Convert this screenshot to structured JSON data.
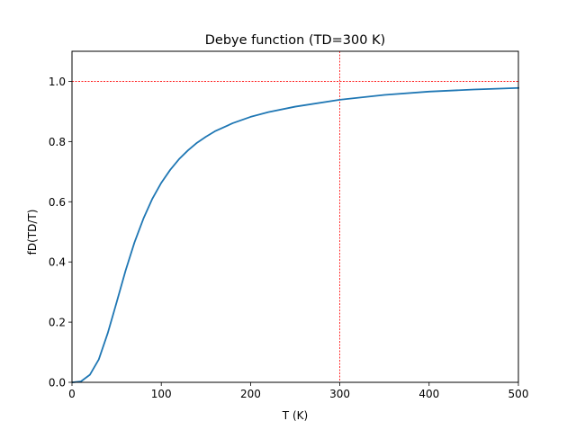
{
  "chart_data": {
    "type": "line",
    "title": "Debye function (TD=300 K)",
    "xlabel": "T (K)",
    "ylabel": "fD(TD/T)",
    "xlim": [
      0,
      500
    ],
    "ylim": [
      0,
      1.1
    ],
    "xticks": [
      0,
      100,
      200,
      300,
      400,
      500
    ],
    "yticks": [
      0.0,
      0.2,
      0.4,
      0.6,
      0.8,
      1.0
    ],
    "xtick_labels": [
      "0",
      "100",
      "200",
      "300",
      "400",
      "500"
    ],
    "ytick_labels": [
      "0.0",
      "0.2",
      "0.4",
      "0.6",
      "0.8",
      "1.0"
    ],
    "grid": false,
    "series": [
      {
        "color": "#1f77b4",
        "x": [
          1,
          10,
          20,
          30,
          40,
          50,
          60,
          70,
          80,
          90,
          100,
          110,
          120,
          130,
          140,
          150,
          160,
          180,
          200,
          220,
          250,
          300,
          350,
          400,
          450,
          500
        ],
        "y": [
          0.0,
          0.003,
          0.025,
          0.076,
          0.163,
          0.266,
          0.371,
          0.465,
          0.544,
          0.61,
          0.663,
          0.706,
          0.742,
          0.771,
          0.796,
          0.816,
          0.834,
          0.861,
          0.882,
          0.898,
          0.916,
          0.939,
          0.955,
          0.966,
          0.973,
          0.978
        ]
      }
    ],
    "reference_lines": [
      {
        "orientation": "horizontal",
        "value": 1.0,
        "color": "#ff0000",
        "style": "dotted"
      },
      {
        "orientation": "vertical",
        "value": 300,
        "color": "#ff0000",
        "style": "dotted"
      }
    ]
  }
}
